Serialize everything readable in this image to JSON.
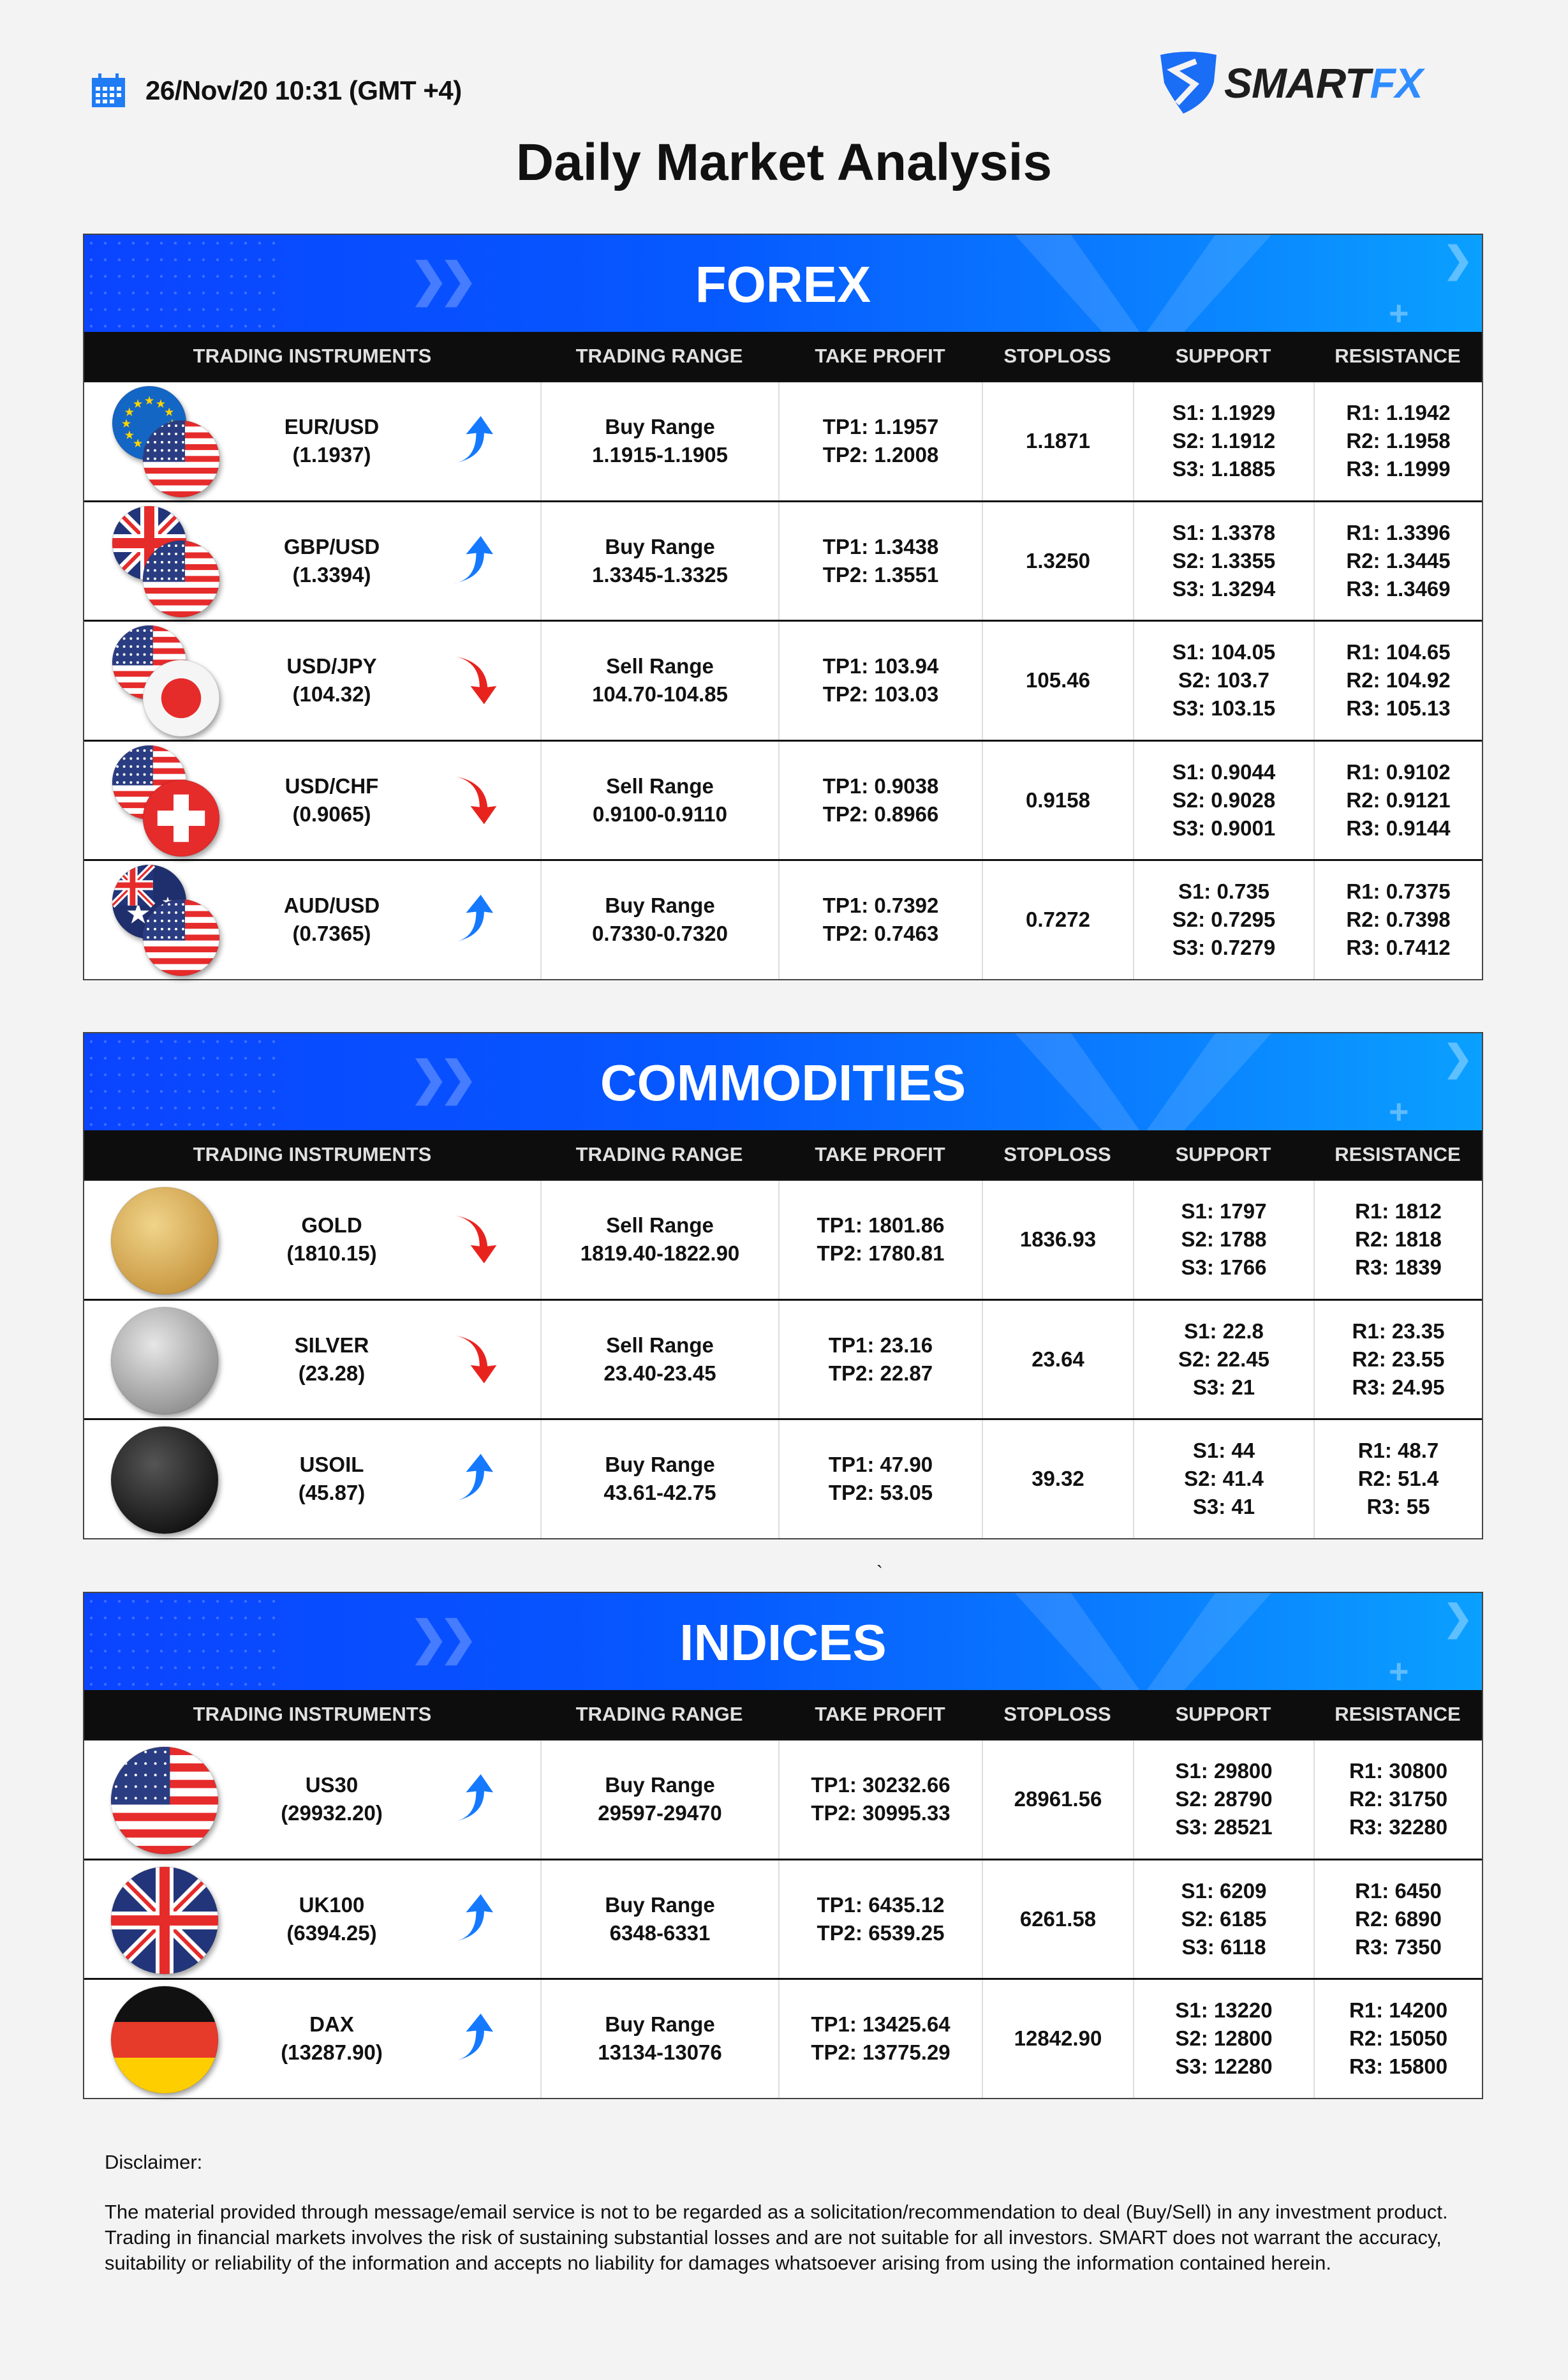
{
  "header": {
    "date": "26/Nov/20 10:31 (GMT +4)",
    "logo_text_1": "SMART",
    "logo_text_2": "FX",
    "calendar_icon": "calendar-icon",
    "logo_icon": "shield-s-icon"
  },
  "title": "Daily Market Analysis",
  "columns": [
    "TRADING INSTRUMENTS",
    "TRADING RANGE",
    "TAKE PROFIT",
    "STOPLOSS",
    "SUPPORT",
    "RESISTANCE"
  ],
  "colors": {
    "up": "#1479ff",
    "down": "#e8231e",
    "banner_start": "#0a44ff",
    "banner_end": "#0aa0ff",
    "header_bar": "#0d0d0d"
  },
  "sections": [
    {
      "title": "FOREX",
      "rows": [
        {
          "flags": [
            "eu",
            "us"
          ],
          "name": "EUR/USD",
          "price": "(1.1937)",
          "direction": "up",
          "range_label": "Buy Range",
          "range": "1.1915-1.1905",
          "tp1": "TP1: 1.1957",
          "tp2": "TP2: 1.2008",
          "stoploss": "1.1871",
          "s1": "S1: 1.1929",
          "s2": "S2: 1.1912",
          "s3": "S3: 1.1885",
          "r1": "R1: 1.1942",
          "r2": "R2: 1.1958",
          "r3": "R3: 1.1999"
        },
        {
          "flags": [
            "gb",
            "us"
          ],
          "name": "GBP/USD",
          "price": "(1.3394)",
          "direction": "up",
          "range_label": "Buy Range",
          "range": "1.3345-1.3325",
          "tp1": "TP1: 1.3438",
          "tp2": "TP2: 1.3551",
          "stoploss": "1.3250",
          "s1": "S1: 1.3378",
          "s2": "S2: 1.3355",
          "s3": "S3: 1.3294",
          "r1": "R1: 1.3396",
          "r2": "R2: 1.3445",
          "r3": "R3: 1.3469"
        },
        {
          "flags": [
            "us",
            "jp"
          ],
          "name": "USD/JPY",
          "price": "(104.32)",
          "direction": "down",
          "range_label": "Sell Range",
          "range": "104.70-104.85",
          "tp1": "TP1: 103.94",
          "tp2": "TP2: 103.03",
          "stoploss": "105.46",
          "s1": "S1: 104.05",
          "s2": "S2: 103.7",
          "s3": "S3: 103.15",
          "r1": "R1: 104.65",
          "r2": "R2: 104.92",
          "r3": "R3: 105.13"
        },
        {
          "flags": [
            "us",
            "ch"
          ],
          "name": "USD/CHF",
          "price": "(0.9065)",
          "direction": "down",
          "range_label": "Sell Range",
          "range": "0.9100-0.9110",
          "tp1": "TP1: 0.9038",
          "tp2": "TP2: 0.8966",
          "stoploss": "0.9158",
          "s1": "S1: 0.9044",
          "s2": "S2: 0.9028",
          "s3": "S3: 0.9001",
          "r1": "R1: 0.9102",
          "r2": "R2: 0.9121",
          "r3": "R3: 0.9144"
        },
        {
          "flags": [
            "au",
            "us"
          ],
          "name": "AUD/USD",
          "price": "(0.7365)",
          "direction": "up",
          "range_label": "Buy Range",
          "range": "0.7330-0.7320",
          "tp1": "TP1: 0.7392",
          "tp2": "TP2: 0.7463",
          "stoploss": "0.7272",
          "s1": "S1: 0.735",
          "s2": "S2: 0.7295",
          "s3": "S3: 0.7279",
          "r1": "R1: 0.7375",
          "r2": "R2: 0.7398",
          "r3": "R3: 0.7412"
        }
      ]
    },
    {
      "title": "COMMODITIES",
      "rows": [
        {
          "flags": [
            "gold"
          ],
          "name": "GOLD",
          "price": "(1810.15)",
          "direction": "down",
          "range_label": "Sell Range",
          "range": "1819.40-1822.90",
          "tp1": "TP1: 1801.86",
          "tp2": "TP2: 1780.81",
          "stoploss": "1836.93",
          "s1": "S1: 1797",
          "s2": "S2: 1788",
          "s3": "S3: 1766",
          "r1": "R1: 1812",
          "r2": "R2: 1818",
          "r3": "R3: 1839"
        },
        {
          "flags": [
            "silver"
          ],
          "name": "SILVER",
          "price": "(23.28)",
          "direction": "down",
          "range_label": "Sell Range",
          "range": "23.40-23.45",
          "tp1": "TP1: 23.16",
          "tp2": "TP2: 22.87",
          "stoploss": "23.64",
          "s1": "S1: 22.8",
          "s2": "S2: 22.45",
          "s3": "S3: 21",
          "r1": "R1: 23.35",
          "r2": "R2: 23.55",
          "r3": "R3: 24.95"
        },
        {
          "flags": [
            "oil"
          ],
          "name": "USOIL",
          "price": "(45.87)",
          "direction": "up",
          "range_label": "Buy Range",
          "range": "43.61-42.75",
          "tp1": "TP1: 47.90",
          "tp2": "TP2: 53.05",
          "stoploss": "39.32",
          "s1": "S1: 44",
          "s2": "S2: 41.4",
          "s3": "S3: 41",
          "r1": "R1: 48.7",
          "r2": "R2: 51.4",
          "r3": "R3: 55"
        }
      ]
    },
    {
      "title": "INDICES",
      "rows": [
        {
          "flags": [
            "us"
          ],
          "name": "US30",
          "price": "(29932.20)",
          "direction": "up",
          "range_label": "Buy Range",
          "range": "29597-29470",
          "tp1": "TP1: 30232.66",
          "tp2": "TP2: 30995.33",
          "stoploss": "28961.56",
          "s1": "S1: 29800",
          "s2": "S2: 28790",
          "s3": "S3: 28521",
          "r1": "R1: 30800",
          "r2": "R2: 31750",
          "r3": "R3: 32280"
        },
        {
          "flags": [
            "gb"
          ],
          "name": "UK100",
          "price": "(6394.25)",
          "direction": "up",
          "range_label": "Buy Range",
          "range": "6348-6331",
          "tp1": "TP1: 6435.12",
          "tp2": "TP2: 6539.25",
          "stoploss": "6261.58",
          "s1": "S1: 6209",
          "s2": "S2: 6185",
          "s3": "S3: 6118",
          "r1": "R1: 6450",
          "r2": "R2: 6890",
          "r3": "R3: 7350"
        },
        {
          "flags": [
            "de"
          ],
          "name": "DAX",
          "price": "(13287.90)",
          "direction": "up",
          "range_label": "Buy Range",
          "range": "13134-13076",
          "tp1": "TP1: 13425.64",
          "tp2": "TP2: 13775.29",
          "stoploss": "12842.90",
          "s1": "S1: 13220",
          "s2": "S2: 12800",
          "s3": "S3: 12280",
          "r1": "R1: 14200",
          "r2": "R2: 15050",
          "r3": "R3: 15800"
        }
      ]
    }
  ],
  "stray_mark": "`",
  "disclaimer": {
    "heading": "Disclaimer:",
    "text": "The material provided through message/email service is not to be regarded as a solicitation/recommendation to deal (Buy/Sell) in any investment product. Trading in financial markets involves the risk of sustaining substantial losses and are not suitable for all investors. SMART does not warrant the accuracy, suitability or reliability of the information and accepts no liability for damages whatsoever arising from using the information contained herein."
  }
}
